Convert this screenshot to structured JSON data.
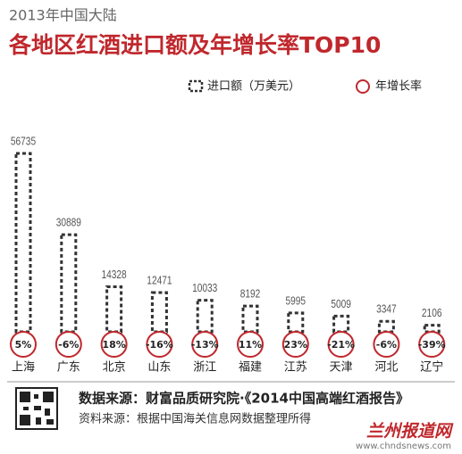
{
  "chart_data": {
    "type": "bar",
    "subtitle": "2013年中国大陆",
    "title": "各地区红酒进口额及年增长率TOP10",
    "categories": [
      "上海",
      "广东",
      "北京",
      "山东",
      "浙江",
      "福建",
      "江苏",
      "天津",
      "河北",
      "辽宁"
    ],
    "series": [
      {
        "name": "进口额（万美元）",
        "color": "#333333",
        "values": [
          56735,
          30889,
          14328,
          12471,
          10033,
          8192,
          5995,
          5009,
          3347,
          2106
        ]
      },
      {
        "name": "年增长率",
        "color": "#c0282d",
        "values": [
          5,
          -6,
          18,
          -16,
          -13,
          11,
          23,
          -21,
          -6,
          -39
        ],
        "value_labels": [
          "5%",
          "-6%",
          "18%",
          "-16%",
          "-13%",
          "11%",
          "23%",
          "-21%",
          "-6%",
          "-39%"
        ]
      }
    ],
    "source": "数据来源：财富品质研究院·《2014中国高端红酒报告》",
    "note": "资料来源：根据中国海关信息网数据整理所得",
    "watermark": "兰州报道网",
    "watermark_url": "www.chndsnews.com"
  }
}
